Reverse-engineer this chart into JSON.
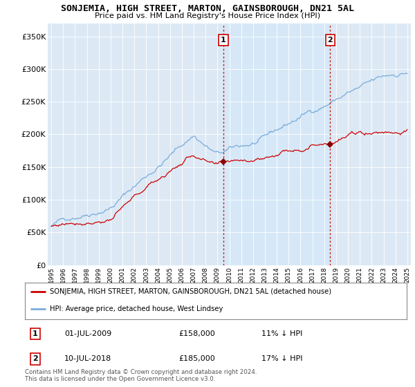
{
  "title": "SONJEMIA, HIGH STREET, MARTON, GAINSBOROUGH, DN21 5AL",
  "subtitle": "Price paid vs. HM Land Registry's House Price Index (HPI)",
  "hpi_label": "HPI: Average price, detached house, West Lindsey",
  "property_label": "SONJEMIA, HIGH STREET, MARTON, GAINSBOROUGH, DN21 5AL (detached house)",
  "property_color": "#cc0000",
  "hpi_color": "#7aabda",
  "shade_color": "#d6e8f7",
  "ylim": [
    0,
    370000
  ],
  "yticks": [
    0,
    50000,
    100000,
    150000,
    200000,
    250000,
    300000,
    350000
  ],
  "ytick_labels": [
    "£0",
    "£50K",
    "£100K",
    "£150K",
    "£200K",
    "£250K",
    "£300K",
    "£350K"
  ],
  "transaction1_x": 2009.5,
  "transaction1_y": 158000,
  "transaction1_label": "1",
  "transaction1_date": "01-JUL-2009",
  "transaction1_price": "£158,000",
  "transaction1_hpi": "11% ↓ HPI",
  "transaction2_x": 2018.5,
  "transaction2_y": 185000,
  "transaction2_label": "2",
  "transaction2_date": "10-JUL-2018",
  "transaction2_price": "£185,000",
  "transaction2_hpi": "17% ↓ HPI",
  "copyright_text": "Contains HM Land Registry data © Crown copyright and database right 2024.\nThis data is licensed under the Open Government Licence v3.0.",
  "background_color": "#dce9f5",
  "fig_bg_color": "#ffffff",
  "xlim_left": 1994.7,
  "xlim_right": 2025.3
}
